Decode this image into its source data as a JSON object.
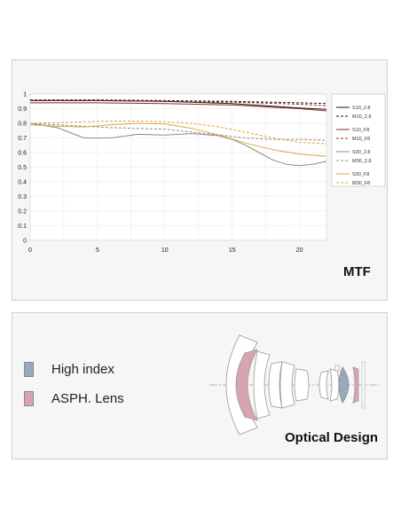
{
  "chart_data": {
    "type": "line",
    "title": "MTF",
    "xlabel": "",
    "ylabel": "",
    "xlim": [
      0,
      22
    ],
    "ylim": [
      0,
      1
    ],
    "x_ticks": [
      "0",
      "5",
      "10",
      "15",
      "20"
    ],
    "y_ticks": [
      "0",
      "0.1",
      "0.2",
      "0.3",
      "0.4",
      "0.5",
      "0.6",
      "0.7",
      "0.8",
      "0.9",
      "1"
    ],
    "grid": true,
    "legend_position": "right",
    "series": [
      {
        "name": "S10_2.8",
        "color": "#1a1a1a",
        "dash": false,
        "x": [
          0,
          5,
          10,
          15,
          20,
          22
        ],
        "y": [
          0.955,
          0.955,
          0.95,
          0.935,
          0.905,
          0.895
        ]
      },
      {
        "name": "M10_2.8",
        "color": "#1a1a1a",
        "dash": true,
        "x": [
          0,
          5,
          10,
          15,
          20,
          22
        ],
        "y": [
          0.96,
          0.96,
          0.955,
          0.95,
          0.94,
          0.935
        ]
      },
      {
        "name": "S10_F8",
        "color": "#8b2a25",
        "dash": false,
        "x": [
          0,
          5,
          10,
          15,
          20,
          22
        ],
        "y": [
          0.94,
          0.94,
          0.935,
          0.925,
          0.9,
          0.885
        ]
      },
      {
        "name": "M10_F8",
        "color": "#8b2a25",
        "dash": true,
        "x": [
          0,
          5,
          10,
          15,
          20,
          22
        ],
        "y": [
          0.955,
          0.955,
          0.95,
          0.945,
          0.93,
          0.92
        ]
      },
      {
        "name": "S30_2.8",
        "color": "#8c8c8c",
        "dash": false,
        "x": [
          0,
          2,
          4,
          6,
          8,
          10,
          12,
          14,
          15,
          16,
          17,
          18,
          19,
          20,
          21,
          22
        ],
        "y": [
          0.8,
          0.77,
          0.7,
          0.7,
          0.725,
          0.72,
          0.73,
          0.715,
          0.69,
          0.65,
          0.6,
          0.55,
          0.52,
          0.51,
          0.52,
          0.54
        ]
      },
      {
        "name": "M30_2.8",
        "color": "#8c8c8c",
        "dash": true,
        "x": [
          0,
          2,
          4,
          6,
          8,
          10,
          12,
          14,
          16,
          18,
          20,
          22
        ],
        "y": [
          0.8,
          0.79,
          0.78,
          0.77,
          0.765,
          0.76,
          0.74,
          0.72,
          0.7,
          0.69,
          0.69,
          0.685
        ]
      },
      {
        "name": "S30_F8",
        "color": "#e3a53a",
        "dash": false,
        "x": [
          0,
          2,
          4,
          6,
          8,
          10,
          12,
          14,
          16,
          18,
          20,
          22
        ],
        "y": [
          0.79,
          0.78,
          0.775,
          0.79,
          0.8,
          0.795,
          0.765,
          0.72,
          0.665,
          0.62,
          0.59,
          0.575
        ]
      },
      {
        "name": "M30_F8",
        "color": "#e3a53a",
        "dash": true,
        "x": [
          0,
          2,
          4,
          6,
          8,
          10,
          12,
          14,
          16,
          18,
          20,
          22
        ],
        "y": [
          0.8,
          0.805,
          0.81,
          0.815,
          0.815,
          0.81,
          0.8,
          0.775,
          0.74,
          0.7,
          0.67,
          0.66
        ]
      }
    ]
  },
  "optics": {
    "title": "Optical Design",
    "legend": [
      {
        "label": "High index",
        "color": "#9aa8bf"
      },
      {
        "label": "ASPH. Lens",
        "color": "#d8a4b0"
      }
    ]
  }
}
